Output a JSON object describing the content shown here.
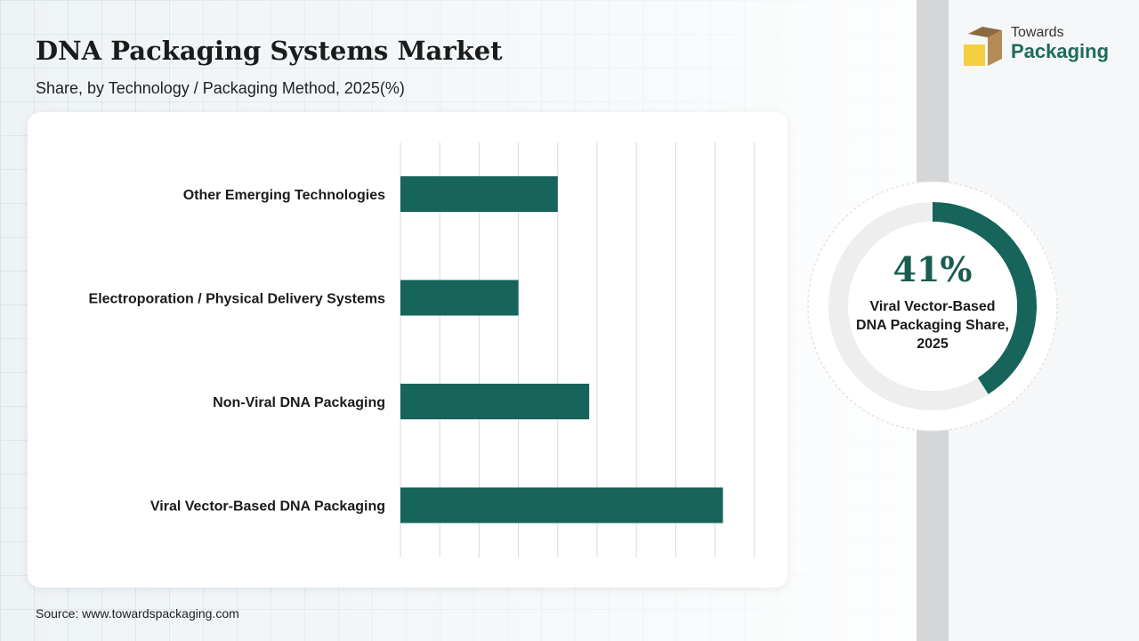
{
  "header": {
    "title": "DNA Packaging Systems Market",
    "subtitle": "Share, by Technology / Packaging Method, 2025(%)"
  },
  "source": "Source: www.towardspackaging.com",
  "logo": {
    "line1": "Towards",
    "line2": "Packaging"
  },
  "highlight": {
    "value": "41%",
    "fraction": 0.41,
    "label": "Viral Vector-Based DNA Packaging Share, 2025"
  },
  "colors": {
    "bar": "#16645a",
    "donut_fill": "#16645a",
    "donut_track": "#eeeeee",
    "gridline": "#d9d9d9",
    "logo_box_tan": "#b48a56",
    "logo_box_yellow": "#f4d03f"
  },
  "chart_data": {
    "type": "bar",
    "orientation": "horizontal",
    "categories": [
      "Other Emerging Technologies",
      "Electroporation / Physical Delivery Systems",
      "Non-Viral DNA Packaging",
      "Viral Vector-Based DNA Packaging"
    ],
    "values": [
      20,
      15,
      24,
      41
    ],
    "xlim": [
      0,
      45
    ],
    "grid": true,
    "legend": "none"
  }
}
